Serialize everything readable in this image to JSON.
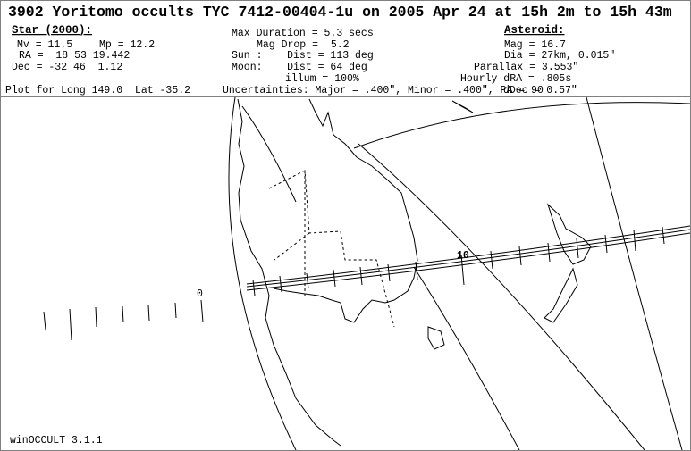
{
  "title": "3902 Yoritomo occults TYC 7412-00404-1u on 2005 Apr 24 at 15h 2m to 15h 43m",
  "star": {
    "heading": "Star (2000):",
    "mv": "Mv = 11.5",
    "mp": "Mp = 12.2",
    "ra": "RA =  18 53 19.442",
    "dec": "Dec = -32 46  1.12"
  },
  "event": {
    "max_duration": "Max Duration = 5.3 secs",
    "mag_drop": "Mag Drop =  5.2",
    "sun": "Sun :    Dist = 113 deg",
    "moon": "Moon:    Dist = 64 deg",
    "illum": "illum = 100%"
  },
  "asteroid": {
    "heading": "Asteroid:",
    "mag": "Mag = 16.7",
    "dia": "Dia = 27km, 0.015\"",
    "parallax": "Parallax = 3.553\"",
    "hourly_dra": "Hourly dRA = .805s",
    "ddec": "dDec = 0.57\""
  },
  "plot_location": "Plot for Long 149.0  Lat -35.2",
  "uncertainties": "Uncertainties: Major = .400\", Minor = .400\", PA = 90",
  "map": {
    "time_labels": [
      "0",
      "10"
    ]
  },
  "footer": "winOCCULT 3.1.1"
}
